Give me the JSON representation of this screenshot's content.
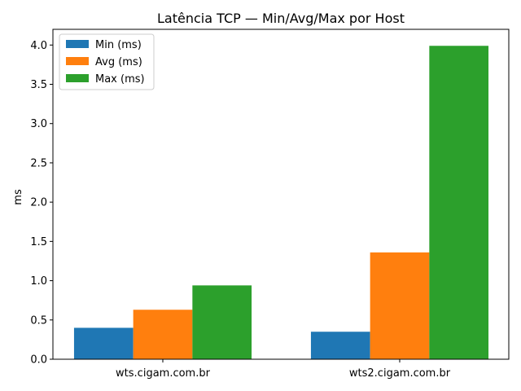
{
  "chart_data": {
    "type": "bar",
    "title": "Latência TCP — Min/Avg/Max por Host",
    "xlabel": "",
    "ylabel": "ms",
    "categories": [
      "wts.cigam.com.br",
      "wts2.cigam.com.br"
    ],
    "series": [
      {
        "name": "Min (ms)",
        "color": "#1f77b4",
        "values": [
          0.4,
          0.35
        ]
      },
      {
        "name": "Avg (ms)",
        "color": "#ff7f0e",
        "values": [
          0.63,
          1.36
        ]
      },
      {
        "name": "Max (ms)",
        "color": "#2ca02c",
        "values": [
          0.94,
          3.99
        ]
      }
    ],
    "ylim": [
      0,
      4.2
    ],
    "yticks": [
      "0.0",
      "0.5",
      "1.0",
      "1.5",
      "2.0",
      "2.5",
      "3.0",
      "3.5",
      "4.0"
    ],
    "grid": false,
    "legend_position": "top-left"
  }
}
